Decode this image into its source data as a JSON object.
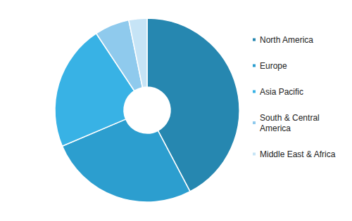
{
  "chart_data": {
    "type": "pie",
    "categories": [
      "North America",
      "Europe",
      "Asia Pacific",
      "South & Central America",
      "Middle East & Africa"
    ],
    "values": [
      42.3,
      26.3,
      22.1,
      6.1,
      3.2
    ],
    "colors": [
      "#2687b0",
      "#2c9ecf",
      "#38b2e5",
      "#8fcaed",
      "#c6e4f6"
    ],
    "legend": "right",
    "data_labels": false
  }
}
